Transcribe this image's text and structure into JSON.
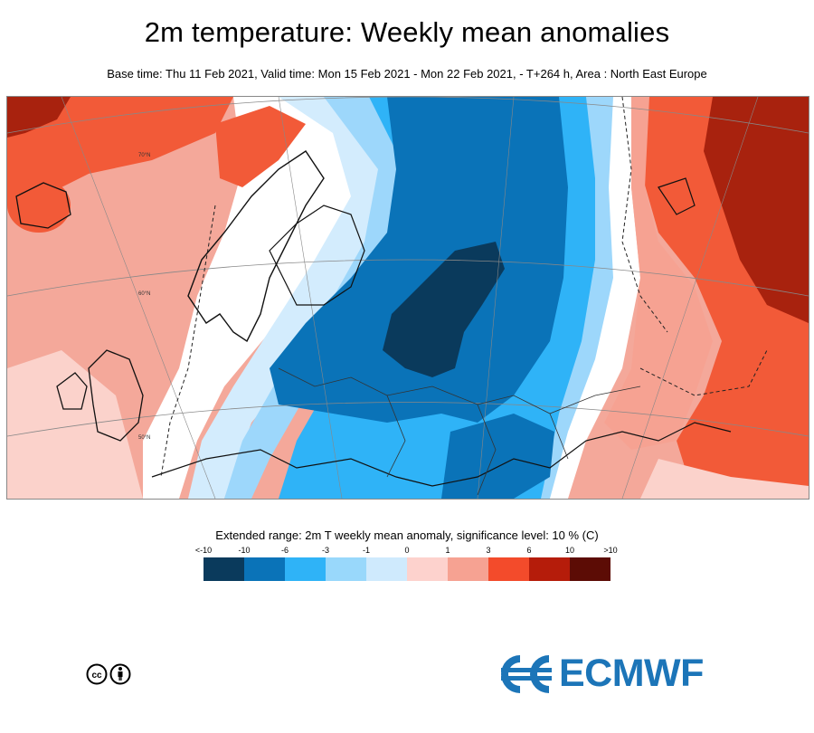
{
  "header": {
    "title": "2m temperature: Weekly mean anomalies",
    "subtitle": "Base time: Thu 11 Feb 2021, Valid time: Mon 15 Feb 2021 - Mon 22 Feb 2021, - T+264 h, Area : North East Europe"
  },
  "map": {
    "area": "North East Europe",
    "latitude_labels": [
      "70°N",
      "60°N",
      "50°N"
    ]
  },
  "legend": {
    "title": "Extended range: 2m T weekly mean anomaly, significance level: 10 % (C)",
    "labels": [
      "<-10",
      "-10",
      "-6",
      "-3",
      "-1",
      "0",
      "1",
      "3",
      "6",
      "10",
      ">10"
    ],
    "colors": [
      "#0a3a5c",
      "#0a73b8",
      "#2fb3f7",
      "#99d8fb",
      "#cfeafd",
      "#fdd2cd",
      "#f6a292",
      "#f34b2b",
      "#b51c0a",
      "#5c0c05"
    ]
  },
  "footer": {
    "brand": "ECMWF",
    "brand_color": "#1c75b8",
    "license_icon": "cc-by-icon"
  }
}
